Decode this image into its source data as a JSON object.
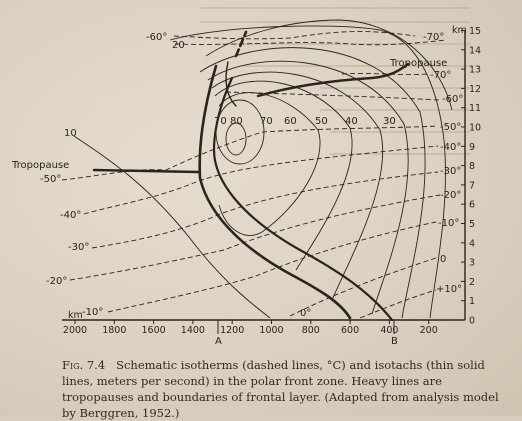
{
  "diagram": {
    "km_unit_right": "km",
    "km_unit_bottom": "km",
    "right_axis_ticks": [
      "0",
      "1",
      "2",
      "3",
      "4",
      "5",
      "6",
      "7",
      "8",
      "9",
      "10",
      "11",
      "12",
      "13",
      "14",
      "15"
    ],
    "bottom_axis_ticks": [
      "2000",
      "1800",
      "1600",
      "1400",
      "1200",
      "1000",
      "800",
      "600",
      "400",
      "200"
    ],
    "point_labels": {
      "a": "A",
      "b": "B"
    },
    "tropopause_left": "Tropopause",
    "tropopause_right": "Tropopause",
    "isotherm_labels": {
      "m70_top": "-70°",
      "m70_right": "-70°",
      "m60_top": "-60°",
      "m60_right": "-60°",
      "m50_right": "-50°",
      "m50_left": "-50°",
      "m40_right": "-40°",
      "m40_left": "-40°",
      "m30_right": "-30°",
      "m30_left": "-30°",
      "m20_right": "-20°",
      "m20_left": "-20°",
      "m10_right": "-10°",
      "m10_left": "-10°",
      "zero_right": "0",
      "zero_bottom": "0°",
      "p10_right": "+10°"
    },
    "isotach_labels": [
      "80",
      "70",
      "70",
      "60",
      "50",
      "40",
      "30",
      "20",
      "10"
    ]
  },
  "caption": {
    "figure_number": "Fig. 7.4",
    "text": "Schematic isotherms (dashed lines, °C) and isotachs (thin solid lines, meters per second) in the polar front zone. Heavy lines are tropopauses and boundaries of frontal layer. (Adapted from analysis model by Berggren, 1952.)"
  }
}
